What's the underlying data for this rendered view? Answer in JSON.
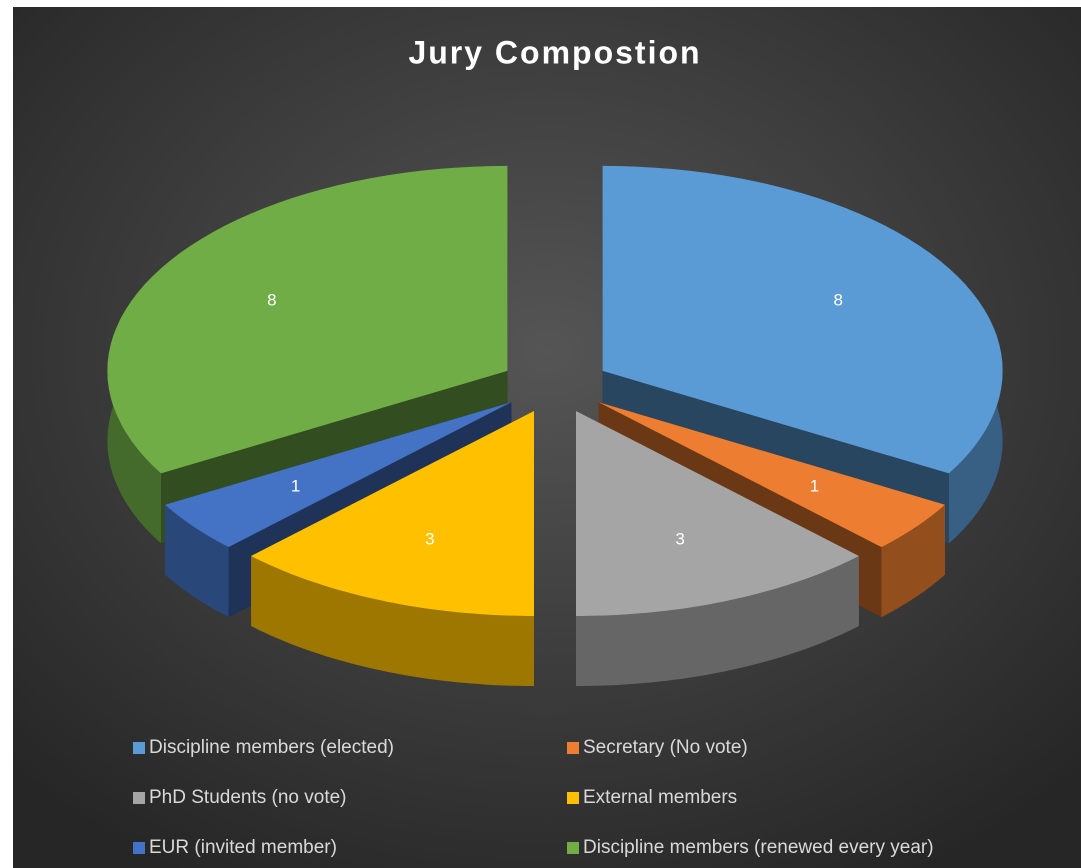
{
  "chart_data": {
    "type": "pie3d",
    "title": "Jury Compostion",
    "categories": [
      "Discipline members (elected)",
      "Secretary (No vote)",
      "PhD Students (no vote)",
      "External members",
      "EUR (invited member)",
      "Discipline members (renewed every year)"
    ],
    "values": [
      8,
      1,
      3,
      3,
      1,
      8
    ],
    "colors": [
      "#5b9bd5",
      "#ed7d31",
      "#a5a5a5",
      "#ffc000",
      "#4472c4",
      "#70ad47"
    ],
    "legend": "bottom"
  }
}
